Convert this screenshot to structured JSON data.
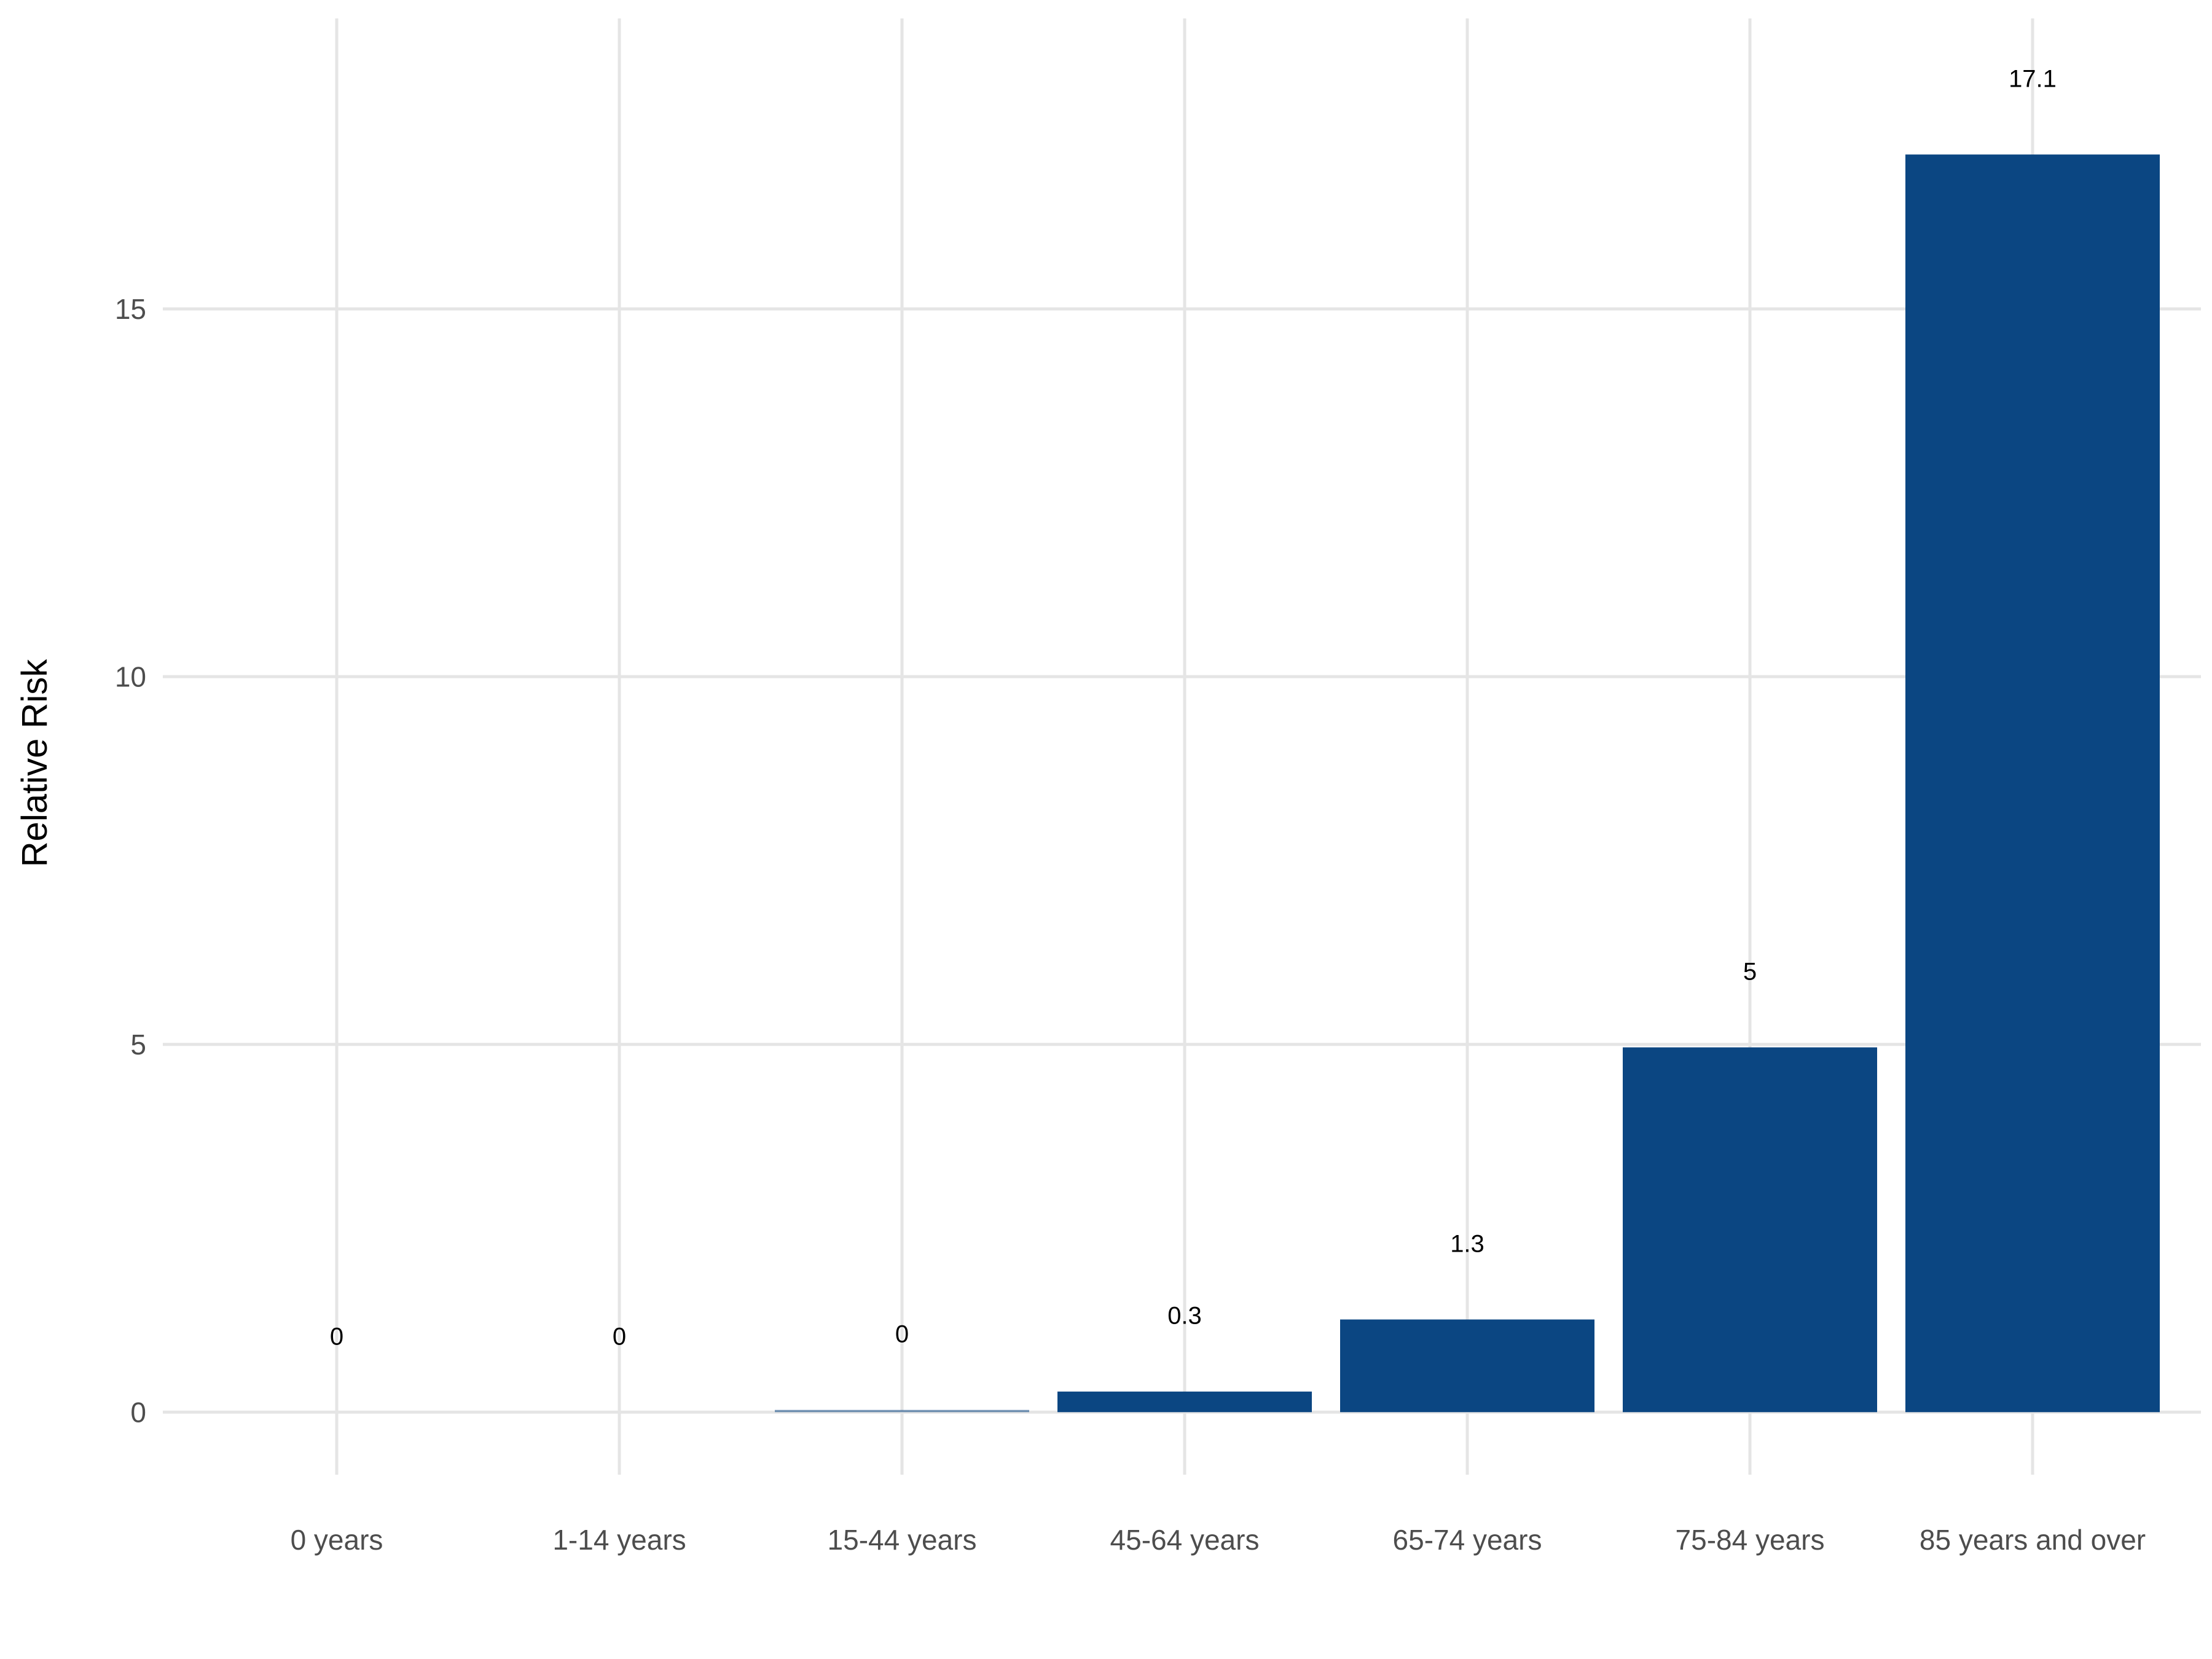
{
  "chart_data": {
    "type": "bar",
    "title": "",
    "xlabel": "",
    "ylabel": "Relative Risk",
    "categories": [
      "0 years",
      "1-14 years",
      "15-44 years",
      "45-64 years",
      "65-74 years",
      "75-84 years",
      "85 years and over"
    ],
    "values": [
      0,
      0,
      0.03,
      0.28,
      1.26,
      4.96,
      17.1
    ],
    "data_labels": [
      "0",
      "0",
      "0",
      "0.3",
      "1.3",
      "5",
      "17.1"
    ],
    "y_ticks": [
      0,
      5,
      10,
      15
    ],
    "y_tick_labels": [
      "0",
      "5",
      "10",
      "15"
    ],
    "ylim": [
      -0.85,
      18.95
    ],
    "grid": true,
    "legend": "none",
    "bar_color": "#0b4682"
  }
}
